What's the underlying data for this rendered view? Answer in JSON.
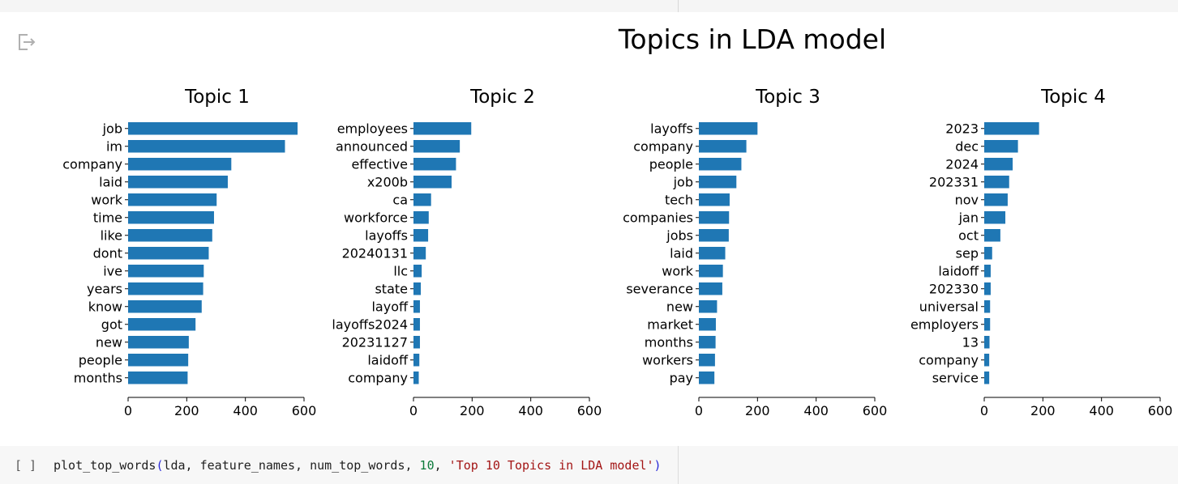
{
  "output": {
    "icon": "exit-output-icon"
  },
  "chart_data": {
    "title": "Topics in LDA model",
    "type": "bar",
    "orientation": "horizontal",
    "bar_color": "#1f77b4",
    "xlim": [
      0,
      600
    ],
    "xticks": [
      0,
      200,
      400,
      600
    ],
    "grid": false,
    "subplots": [
      {
        "title": "Topic 1",
        "categories": [
          "job",
          "im",
          "company",
          "laid",
          "work",
          "time",
          "like",
          "dont",
          "ive",
          "years",
          "know",
          "got",
          "new",
          "people",
          "months"
        ],
        "values": [
          578,
          535,
          352,
          340,
          302,
          293,
          287,
          275,
          258,
          256,
          251,
          230,
          207,
          205,
          203
        ]
      },
      {
        "title": "Topic 2",
        "categories": [
          "employees",
          "announced",
          "effective",
          "x200b",
          "ca",
          "workforce",
          "layoffs",
          "20240131",
          "llc",
          "state",
          "layoff",
          "layoffs2024",
          "20231127",
          "laidoff",
          "company"
        ],
        "values": [
          197,
          158,
          145,
          130,
          60,
          52,
          50,
          42,
          28,
          25,
          22,
          22,
          22,
          20,
          18
        ]
      },
      {
        "title": "Topic 3",
        "categories": [
          "layoffs",
          "company",
          "people",
          "job",
          "tech",
          "companies",
          "jobs",
          "laid",
          "work",
          "severance",
          "new",
          "market",
          "months",
          "workers",
          "pay"
        ],
        "values": [
          200,
          162,
          145,
          128,
          105,
          103,
          102,
          90,
          82,
          80,
          62,
          58,
          57,
          55,
          53
        ]
      },
      {
        "title": "Topic 4",
        "categories": [
          "2023",
          "dec",
          "2024",
          "202331",
          "nov",
          "jan",
          "oct",
          "sep",
          "laidoff",
          "202330",
          "universal",
          "employers",
          "13",
          "company",
          "service"
        ],
        "values": [
          187,
          115,
          97,
          85,
          80,
          72,
          55,
          27,
          22,
          22,
          20,
          20,
          18,
          17,
          17
        ]
      }
    ]
  },
  "code_cell": {
    "run_indicator": "[ ]",
    "func": "plot_top_words",
    "open_paren": "(",
    "args": "lda, feature_names, num_top_words, ",
    "num_arg": "10",
    "sep": ", ",
    "str_arg": "'Top 10 Topics in LDA model'",
    "close_paren": ")"
  }
}
